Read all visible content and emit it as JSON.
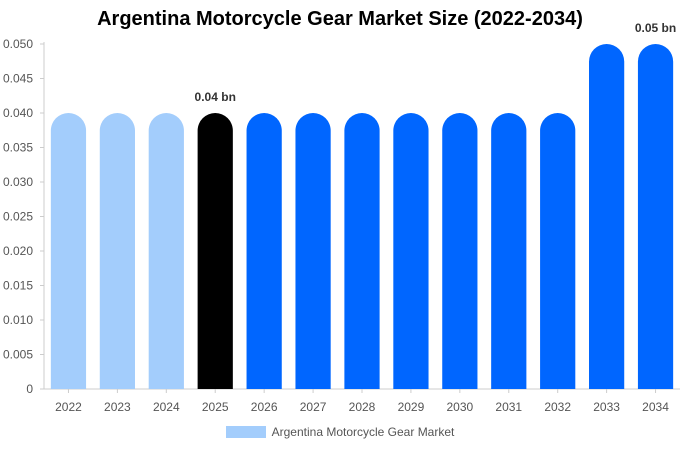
{
  "chart_data": {
    "type": "bar",
    "title": "Argentina Motorcycle Gear Market Size (2022-2034)",
    "xlabel": "",
    "ylabel": "",
    "categories": [
      "2022",
      "2023",
      "2024",
      "2025",
      "2026",
      "2027",
      "2028",
      "2029",
      "2030",
      "2031",
      "2032",
      "2033",
      "2034"
    ],
    "series": [
      {
        "name": "Argentina Motorcycle Gear Market",
        "values": [
          0.04,
          0.04,
          0.04,
          0.04,
          0.04,
          0.04,
          0.04,
          0.04,
          0.04,
          0.04,
          0.04,
          0.05,
          0.05
        ]
      }
    ],
    "bar_colors": [
      "#a3cdfc",
      "#a3cdfc",
      "#a3cdfc",
      "#000000",
      "#0066ff",
      "#0066ff",
      "#0066ff",
      "#0066ff",
      "#0066ff",
      "#0066ff",
      "#0066ff",
      "#0066ff",
      "#0066ff"
    ],
    "data_labels": [
      {
        "category": "2025",
        "text": "0.04 bn"
      },
      {
        "category": "2034",
        "text": "0.05 bn"
      }
    ],
    "y_ticks": [
      "0",
      "0.005",
      "0.010",
      "0.015",
      "0.020",
      "0.025",
      "0.030",
      "0.035",
      "0.040",
      "0.045",
      "0.050"
    ],
    "ylim": [
      0,
      0.05
    ],
    "grid": false,
    "legend_position": "bottom",
    "legend_color": "#a3cdfc"
  }
}
